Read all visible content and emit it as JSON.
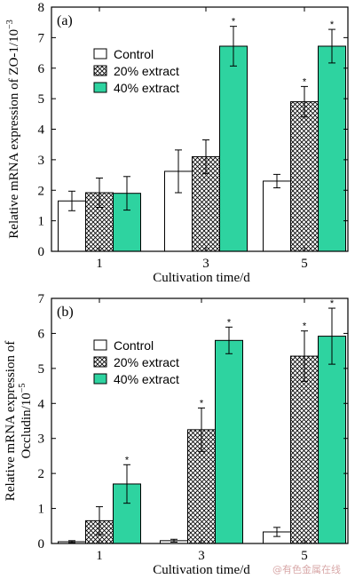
{
  "colors": {
    "control": "#ffffff",
    "extract20_bg": "#ffffff",
    "extract20_pattern": "#000000",
    "extract40": "#2ed3a0",
    "axis": "#000000"
  },
  "watermark": "@有色金属在线",
  "chart_data": [
    {
      "type": "bar",
      "panel_label": "(a)",
      "title": "",
      "xlabel": "Cultivation time/d",
      "ylabel": "Relative mRNA expression of ZO-1/10",
      "ylabel_sup": "−3",
      "ylabel_lines": [],
      "categories": [
        "1",
        "3",
        "5"
      ],
      "ylim": [
        0,
        8
      ],
      "yticks": [
        "0",
        "1",
        "2",
        "3",
        "4",
        "5",
        "6",
        "7",
        "8"
      ],
      "legend_position": "upper-left",
      "series": [
        {
          "name": "Control",
          "values": [
            1.65,
            2.62,
            2.3
          ],
          "errors": [
            0.32,
            0.7,
            0.22
          ],
          "stars": [
            false,
            false,
            false
          ],
          "style": "control"
        },
        {
          "name": "20% extract",
          "values": [
            1.92,
            3.1,
            4.9
          ],
          "errors": [
            0.48,
            0.55,
            0.5
          ],
          "stars": [
            false,
            false,
            true
          ],
          "style": "extract20"
        },
        {
          "name": "40% extract",
          "values": [
            1.9,
            6.72,
            6.72
          ],
          "errors": [
            0.55,
            0.65,
            0.55
          ],
          "stars": [
            false,
            true,
            true
          ],
          "style": "extract40"
        }
      ]
    },
    {
      "type": "bar",
      "panel_label": "(b)",
      "title": "",
      "xlabel": "Cultivation time/d",
      "ylabel": "",
      "ylabel_sup": "−5",
      "ylabel_lines": [
        "Relative mRNA expression of",
        "Occludin/10"
      ],
      "categories": [
        "1",
        "3",
        "5"
      ],
      "ylim": [
        0,
        7
      ],
      "yticks": [
        "0",
        "1",
        "2",
        "3",
        "4",
        "5",
        "6",
        "7"
      ],
      "legend_position": "upper-left",
      "series": [
        {
          "name": "Control",
          "values": [
            0.05,
            0.08,
            0.33
          ],
          "errors": [
            0.03,
            0.04,
            0.13
          ],
          "stars": [
            false,
            false,
            false
          ],
          "style": "control"
        },
        {
          "name": "20% extract",
          "values": [
            0.65,
            3.25,
            5.35
          ],
          "errors": [
            0.4,
            0.62,
            0.72
          ],
          "stars": [
            false,
            true,
            true
          ],
          "style": "extract20"
        },
        {
          "name": "40% extract",
          "values": [
            1.7,
            5.8,
            5.92
          ],
          "errors": [
            0.55,
            0.38,
            0.8
          ],
          "stars": [
            true,
            true,
            true
          ],
          "style": "extract40"
        }
      ]
    }
  ]
}
